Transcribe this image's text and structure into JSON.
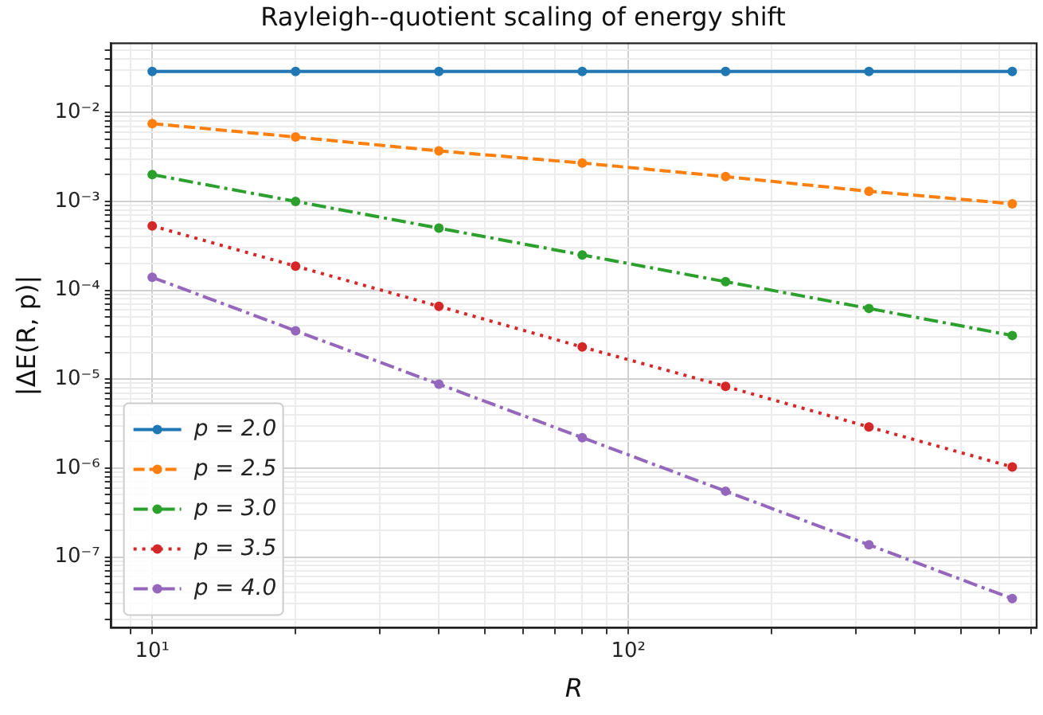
{
  "chart_data": {
    "type": "line",
    "title": "Rayleigh--quotient scaling of energy shift",
    "xlabel": "R",
    "ylabel": "|ΔE(R, p)|",
    "x": [
      10,
      20,
      40,
      80,
      160,
      320,
      640
    ],
    "series": [
      {
        "name": "p = 2.0",
        "color": "#1f77b4",
        "line_style": "solid",
        "values": [
          0.029,
          0.029,
          0.029,
          0.029,
          0.029,
          0.029,
          0.029
        ]
      },
      {
        "name": "p = 2.5",
        "color": "#ff7f0e",
        "line_style": "dashed",
        "values": [
          0.0075,
          0.0053,
          0.0037,
          0.0027,
          0.0019,
          0.0013,
          0.00094
        ]
      },
      {
        "name": "p = 3.0",
        "color": "#2ca02c",
        "line_style": "dashdot",
        "values": [
          0.002,
          0.001,
          0.0005,
          0.00025,
          0.000125,
          6.25e-05,
          3.1e-05
        ]
      },
      {
        "name": "p = 3.5",
        "color": "#d62728",
        "line_style": "dotted",
        "values": [
          0.00053,
          0.000187,
          6.6e-05,
          2.3e-05,
          8.3e-06,
          2.9e-06,
          1.03e-06
        ]
      },
      {
        "name": "p = 4.0",
        "color": "#9467bd",
        "line_style": "dashdot",
        "values": [
          0.00014,
          3.5e-05,
          8.8e-06,
          2.2e-06,
          5.5e-07,
          1.37e-07,
          3.4e-08
        ]
      }
    ],
    "log": "xy",
    "grid": true,
    "legend": "bottom left",
    "marker": "circle",
    "xlim": [
      8.2,
      720
    ],
    "xticks": [
      {
        "value": 9,
        "label": null
      },
      {
        "value": 10,
        "label": "10¹"
      },
      {
        "value": 20,
        "label": null
      },
      {
        "value": 30,
        "label": null
      },
      {
        "value": 40,
        "label": null
      },
      {
        "value": 50,
        "label": null
      },
      {
        "value": 60,
        "label": null
      },
      {
        "value": 70,
        "label": null
      },
      {
        "value": 80,
        "label": null
      },
      {
        "value": 90,
        "label": null
      },
      {
        "value": 100,
        "label": "10²"
      },
      {
        "value": 200,
        "label": null
      },
      {
        "value": 300,
        "label": null
      },
      {
        "value": 400,
        "label": null
      },
      {
        "value": 500,
        "label": null
      },
      {
        "value": 600,
        "label": null
      },
      {
        "value": 700,
        "label": null
      }
    ],
    "ylim": [
      1.6e-08,
      0.06
    ],
    "yticks": [
      {
        "value": 2e-08,
        "label": null
      },
      {
        "value": 3e-08,
        "label": null
      },
      {
        "value": 4e-08,
        "label": null
      },
      {
        "value": 5e-08,
        "label": null
      },
      {
        "value": 6e-08,
        "label": null
      },
      {
        "value": 7e-08,
        "label": null
      },
      {
        "value": 8e-08,
        "label": null
      },
      {
        "value": 9e-08,
        "label": null
      },
      {
        "value": 1e-07,
        "label": "10⁻⁷"
      },
      {
        "value": 2e-07,
        "label": null
      },
      {
        "value": 3e-07,
        "label": null
      },
      {
        "value": 4e-07,
        "label": null
      },
      {
        "value": 5e-07,
        "label": null
      },
      {
        "value": 6e-07,
        "label": null
      },
      {
        "value": 7e-07,
        "label": null
      },
      {
        "value": 8e-07,
        "label": null
      },
      {
        "value": 9e-07,
        "label": null
      },
      {
        "value": 1e-06,
        "label": "10⁻⁶"
      },
      {
        "value": 2e-06,
        "label": null
      },
      {
        "value": 3e-06,
        "label": null
      },
      {
        "value": 4e-06,
        "label": null
      },
      {
        "value": 5e-06,
        "label": null
      },
      {
        "value": 6e-06,
        "label": null
      },
      {
        "value": 7e-06,
        "label": null
      },
      {
        "value": 8e-06,
        "label": null
      },
      {
        "value": 9e-06,
        "label": null
      },
      {
        "value": 1e-05,
        "label": "10⁻⁵"
      },
      {
        "value": 2e-05,
        "label": null
      },
      {
        "value": 3e-05,
        "label": null
      },
      {
        "value": 4e-05,
        "label": null
      },
      {
        "value": 5e-05,
        "label": null
      },
      {
        "value": 6e-05,
        "label": null
      },
      {
        "value": 7e-05,
        "label": null
      },
      {
        "value": 8e-05,
        "label": null
      },
      {
        "value": 9e-05,
        "label": null
      },
      {
        "value": 0.0001,
        "label": "10⁻⁴"
      },
      {
        "value": 0.0002,
        "label": null
      },
      {
        "value": 0.0003,
        "label": null
      },
      {
        "value": 0.0004,
        "label": null
      },
      {
        "value": 0.0005,
        "label": null
      },
      {
        "value": 0.0006,
        "label": null
      },
      {
        "value": 0.0007,
        "label": null
      },
      {
        "value": 0.0008,
        "label": null
      },
      {
        "value": 0.0009,
        "label": null
      },
      {
        "value": 0.001,
        "label": "10⁻³"
      },
      {
        "value": 0.002,
        "label": null
      },
      {
        "value": 0.003,
        "label": null
      },
      {
        "value": 0.004,
        "label": null
      },
      {
        "value": 0.005,
        "label": null
      },
      {
        "value": 0.006,
        "label": null
      },
      {
        "value": 0.007,
        "label": null
      },
      {
        "value": 0.008,
        "label": null
      },
      {
        "value": 0.009,
        "label": null
      },
      {
        "value": 0.01,
        "label": "10⁻²"
      },
      {
        "value": 0.02,
        "label": null
      },
      {
        "value": 0.03,
        "label": null
      },
      {
        "value": 0.04,
        "label": null
      },
      {
        "value": 0.05,
        "label": null
      }
    ]
  }
}
